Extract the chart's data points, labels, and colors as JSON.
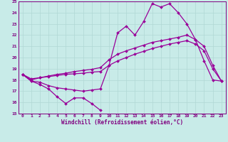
{
  "title": "",
  "xlabel": "Windchill (Refroidissement éolien,°C)",
  "ylabel": "",
  "xlim": [
    -0.5,
    23.5
  ],
  "ylim": [
    15,
    25
  ],
  "yticks": [
    15,
    16,
    17,
    18,
    19,
    20,
    21,
    22,
    23,
    24,
    25
  ],
  "xticks": [
    0,
    1,
    2,
    3,
    4,
    5,
    6,
    7,
    8,
    9,
    10,
    11,
    12,
    13,
    14,
    15,
    16,
    17,
    18,
    19,
    20,
    21,
    22,
    23
  ],
  "background_color": "#c8ebe8",
  "grid_color": "#b0d8d4",
  "line_color": "#990099",
  "line1_x": [
    0,
    1,
    2,
    3,
    4,
    5,
    6,
    7,
    8,
    9
  ],
  "line1_y": [
    18.5,
    17.9,
    17.6,
    17.2,
    16.5,
    15.9,
    16.4,
    16.4,
    15.9,
    15.3
  ],
  "line2_x": [
    0,
    1,
    2,
    3,
    4,
    5,
    6,
    7,
    8,
    9,
    10,
    11,
    12,
    13,
    14,
    15,
    16,
    17,
    18,
    19,
    20,
    21,
    22,
    23
  ],
  "line2_y": [
    18.5,
    17.9,
    17.8,
    17.5,
    17.3,
    17.2,
    17.1,
    17.0,
    17.1,
    17.2,
    19.3,
    22.2,
    22.8,
    22.0,
    23.2,
    24.8,
    24.5,
    24.8,
    24.0,
    23.0,
    21.6,
    19.7,
    18.0,
    17.9
  ],
  "line3_x": [
    0,
    1,
    2,
    3,
    4,
    5,
    6,
    7,
    8,
    9,
    10,
    11,
    12,
    13,
    14,
    15,
    16,
    17,
    18,
    19,
    20,
    21,
    22,
    23
  ],
  "line3_y": [
    18.5,
    18.0,
    18.2,
    18.35,
    18.5,
    18.6,
    18.75,
    18.85,
    18.95,
    19.1,
    19.8,
    20.3,
    20.6,
    20.85,
    21.1,
    21.35,
    21.5,
    21.65,
    21.8,
    22.0,
    21.6,
    21.0,
    19.3,
    17.9
  ],
  "line4_x": [
    0,
    1,
    2,
    3,
    4,
    5,
    6,
    7,
    8,
    9,
    10,
    11,
    12,
    13,
    14,
    15,
    16,
    17,
    18,
    19,
    20,
    21,
    22,
    23
  ],
  "line4_y": [
    18.5,
    18.1,
    18.2,
    18.3,
    18.4,
    18.5,
    18.55,
    18.6,
    18.7,
    18.75,
    19.3,
    19.7,
    20.0,
    20.3,
    20.55,
    20.8,
    21.0,
    21.2,
    21.35,
    21.5,
    21.2,
    20.6,
    19.0,
    17.9
  ]
}
